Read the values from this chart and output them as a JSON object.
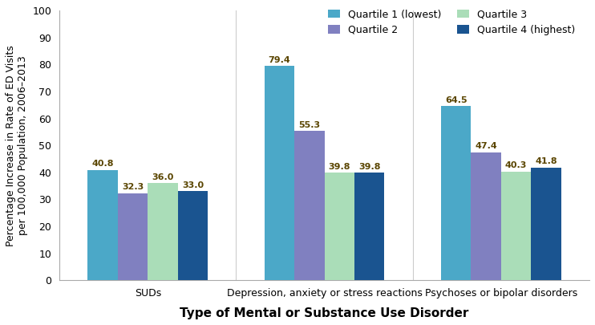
{
  "categories": [
    "SUDs",
    "Depression, anxiety or stress reactions",
    "Psychoses or bipolar disorders"
  ],
  "quartiles": [
    "Quartile 1 (lowest)",
    "Quartile 2",
    "Quartile 3",
    "Quartile 4 (highest)"
  ],
  "values": {
    "Quartile 1 (lowest)": [
      40.8,
      79.4,
      64.5
    ],
    "Quartile 2": [
      32.3,
      55.3,
      47.4
    ],
    "Quartile 3": [
      36.0,
      39.8,
      40.3
    ],
    "Quartile 4 (highest)": [
      33.0,
      39.8,
      41.8
    ]
  },
  "colors": {
    "Quartile 1 (lowest)": "#4BA8C8",
    "Quartile 2": "#8080C0",
    "Quartile 3": "#AADDB8",
    "Quartile 4 (highest)": "#1A5490"
  },
  "ylabel": "Percentage Increase in Rate of ED Visits\nper 100,000 Population, 2006–2013",
  "xlabel": "Type of Mental or Substance Use Disorder",
  "ylim": [
    0,
    100
  ],
  "yticks": [
    0,
    10,
    20,
    30,
    40,
    50,
    60,
    70,
    80,
    90,
    100
  ],
  "bar_width": 0.17,
  "label_fontsize": 8,
  "ylabel_fontsize": 9,
  "xlabel_fontsize": 11,
  "tick_fontsize": 9,
  "legend_fontsize": 9,
  "value_label_color": "#5A4500",
  "figsize": [
    7.42,
    4.05
  ],
  "dpi": 100
}
